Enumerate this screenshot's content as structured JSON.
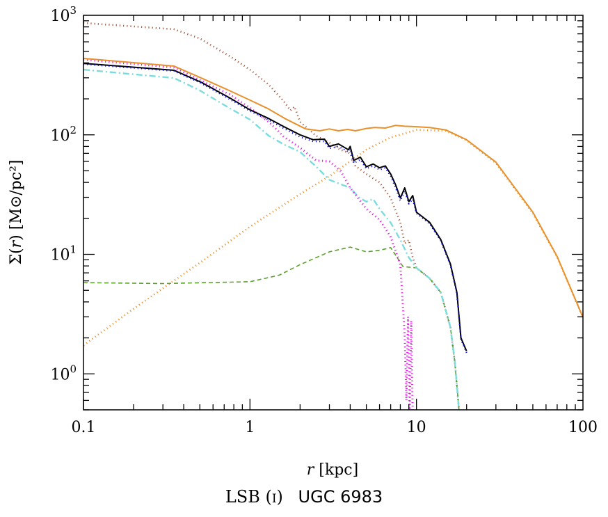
{
  "caption": {
    "prefix": "LSB (i)",
    "galaxy": "UGC 6983"
  },
  "chart_data": {
    "type": "line",
    "xlabel": "r [kpc]",
    "ylabel": "Σ(r) [M⊙/pc²]",
    "xscale": "log",
    "yscale": "log",
    "xlim": [
      0.1,
      100
    ],
    "ylim": [
      0.5,
      1000
    ],
    "xticks": [
      {
        "v": 0.1,
        "label": "0.1"
      },
      {
        "v": 1,
        "label": "1"
      },
      {
        "v": 10,
        "label": "10"
      },
      {
        "v": 100,
        "label": "100"
      }
    ],
    "yticks": [
      {
        "v": 1,
        "base": "10",
        "exp": "0"
      },
      {
        "v": 10,
        "base": "10",
        "exp": "1"
      },
      {
        "v": 100,
        "base": "10",
        "exp": "2"
      },
      {
        "v": 1000,
        "base": "10",
        "exp": "3"
      }
    ],
    "grid": false,
    "series": [
      {
        "color": "#a0583c",
        "style": "dotted",
        "width": 2.6,
        "x": [
          0.1,
          0.35,
          0.5,
          0.75,
          1,
          1.3,
          1.6,
          1.75,
          1.85,
          2,
          2.5,
          3,
          3.5,
          4,
          4.3,
          5,
          6,
          7,
          8,
          8.5,
          9,
          9.5,
          10,
          12,
          14,
          16,
          17,
          18
        ],
        "y": [
          863,
          765,
          640,
          458,
          351,
          262,
          190,
          160,
          172,
          128,
          98,
          86,
          75,
          70,
          55,
          47,
          40,
          29.6,
          18.4,
          12.3,
          13.2,
          9.4,
          7.7,
          6.3,
          4.8,
          2.45,
          1.26,
          0.5
        ]
      },
      {
        "color": "#e8902a",
        "style": "dotted",
        "width": 2.6,
        "x": [
          0.1,
          0.2,
          0.3,
          0.5,
          1,
          2,
          3,
          5,
          7,
          10,
          15,
          20,
          30,
          50,
          70,
          100
        ],
        "y": [
          1.73,
          3.5,
          5.2,
          8.5,
          17,
          32,
          45,
          75,
          95,
          110,
          108,
          90,
          58,
          22,
          9.5,
          2.95
        ]
      },
      {
        "color": "#5aa02c",
        "style": "dashed",
        "width": 1.6,
        "x": [
          0.1,
          0.3,
          1,
          1.5,
          2,
          3,
          4,
          5,
          6,
          7,
          8.3,
          10,
          12,
          14,
          16,
          17,
          18
        ],
        "y": [
          5.8,
          5.7,
          5.9,
          6.7,
          8.2,
          10.5,
          11.5,
          10.5,
          10.8,
          11.4,
          7.9,
          7.7,
          6.3,
          4.8,
          2.45,
          1.26,
          0.5
        ]
      },
      {
        "color": "#7adcdc",
        "style": "dashdot",
        "width": 2.4,
        "x": [
          0.1,
          0.35,
          0.5,
          0.75,
          1,
          1.3,
          1.6,
          2,
          2.5,
          3,
          4,
          4.5,
          5,
          5.5,
          6,
          7,
          8,
          9,
          10,
          12,
          14,
          16,
          17,
          18
        ],
        "y": [
          351,
          299,
          235,
          168,
          134,
          98,
          83,
          72,
          54,
          42,
          36,
          30,
          27.6,
          29,
          24,
          18.4,
          13.2,
          9.4,
          7.7,
          6.3,
          4.8,
          2.45,
          1.26,
          0.5
        ]
      },
      {
        "color": "#e619e6",
        "style": "dotted",
        "width": 3,
        "x": [
          0.1,
          0.35,
          0.5,
          0.75,
          1,
          1.3,
          1.6,
          2,
          2.5,
          3,
          3.5,
          4,
          5,
          6,
          7,
          8,
          8.5,
          8.7,
          8.9,
          9.1,
          9.3,
          9.5,
          9.7
        ],
        "y": [
          426,
          366,
          287,
          219,
          168,
          128,
          96,
          78,
          61,
          60,
          50,
          36,
          24,
          19.5,
          14,
          8.2,
          2.1,
          0.6,
          3.0,
          0.5,
          2.8,
          0.45,
          0.4
        ]
      },
      {
        "color": "#000000",
        "style": "solid",
        "width": 2,
        "x": [
          0.1,
          0.35,
          0.51,
          0.75,
          1,
          1.28,
          1.62,
          2,
          2.4,
          2.8,
          3,
          3.4,
          3.9,
          4.0,
          4.2,
          4.6,
          5,
          5.5,
          6,
          6.5,
          7,
          7.5,
          8,
          8.5,
          9,
          9.5,
          10,
          12,
          14,
          16,
          17.5,
          18.5,
          20
        ],
        "y": [
          396,
          347,
          275,
          205,
          162,
          138,
          116,
          100,
          91,
          92,
          80,
          84,
          75,
          80,
          61,
          65,
          54,
          57,
          53,
          55,
          47,
          38,
          29.6,
          36,
          27.6,
          31,
          22.5,
          18.5,
          13.3,
          8.3,
          4.8,
          2.0,
          1.55
        ]
      },
      {
        "color": "#0000ff",
        "style": "dotted",
        "width": 2.2,
        "x": [
          0.1,
          0.35,
          0.51,
          0.75,
          1,
          1.28,
          1.62,
          2,
          2.4,
          2.8,
          3,
          3.4,
          3.9,
          4.0,
          4.2,
          4.6,
          5,
          5.5,
          6,
          6.5,
          7,
          7.5,
          8,
          8.5,
          9,
          9.5,
          10,
          12,
          14,
          16,
          17.5,
          18.5,
          20
        ],
        "y": [
          390,
          342,
          270,
          200,
          158,
          134,
          112,
          96,
          88,
          88,
          77,
          80,
          72,
          76,
          58,
          62,
          52,
          55,
          51,
          53,
          45,
          36,
          28,
          34,
          26.5,
          29,
          22,
          18,
          13,
          8.1,
          4.7,
          1.95,
          1.5
        ]
      },
      {
        "color": "#e8902a",
        "style": "solid",
        "width": 2,
        "x": [
          0.1,
          0.35,
          0.51,
          0.75,
          1,
          1.28,
          1.62,
          2.16,
          2.63,
          3,
          3.4,
          3.86,
          4.3,
          5,
          5.6,
          6.5,
          7.5,
          8.5,
          10,
          12,
          15,
          20,
          30,
          50,
          70,
          100
        ],
        "y": [
          436,
          376,
          299,
          235,
          195,
          166,
          137,
          112,
          108,
          112,
          108,
          111,
          108,
          113,
          115,
          114,
          120,
          118,
          117,
          115,
          110,
          91,
          59,
          22.5,
          9.6,
          2.97
        ]
      }
    ]
  }
}
